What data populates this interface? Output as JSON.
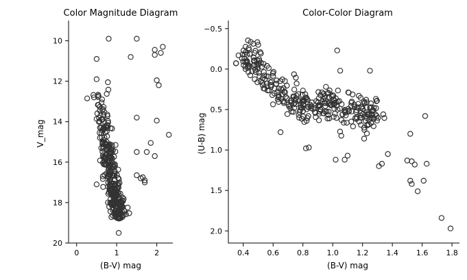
{
  "chart_data": [
    {
      "type": "scatter",
      "title": "Color Magnitude Diagram",
      "xlabel": "(B-V) mag",
      "ylabel": "V_mag",
      "xlim": [
        -0.2,
        2.4
      ],
      "ylim": [
        20,
        9
      ],
      "y_inverted": true,
      "xticks": [
        0,
        1,
        2
      ],
      "yticks": [
        10,
        12,
        14,
        16,
        18,
        20
      ],
      "marker": "open-circle",
      "marker_color": "#333333",
      "outliers": [
        [
          0.8,
          9.9
        ],
        [
          1.5,
          9.9
        ],
        [
          1.95,
          10.45
        ],
        [
          2.15,
          10.3
        ],
        [
          1.95,
          10.7
        ],
        [
          2.1,
          10.6
        ],
        [
          1.35,
          10.8
        ],
        [
          0.5,
          10.9
        ],
        [
          0.5,
          11.9
        ],
        [
          2.0,
          11.95
        ],
        [
          2.05,
          12.2
        ],
        [
          0.78,
          12.05
        ],
        [
          1.5,
          13.8
        ],
        [
          2.0,
          13.95
        ],
        [
          2.3,
          14.65
        ],
        [
          1.85,
          15.05
        ],
        [
          1.5,
          15.5
        ],
        [
          1.75,
          15.5
        ],
        [
          1.95,
          15.7
        ],
        [
          1.5,
          16.65
        ],
        [
          1.6,
          16.8
        ],
        [
          1.65,
          16.75
        ],
        [
          1.7,
          16.9
        ],
        [
          1.7,
          17.0
        ],
        [
          0.5,
          17.1
        ],
        [
          1.05,
          19.5
        ]
      ],
      "cluster": {
        "x_at_v12": 0.52,
        "x_at_v15": 0.72,
        "x_at_v17": 0.9,
        "x_at_v18.5": 1.05,
        "v_range": [
          12.3,
          18.8
        ],
        "approx_points": 340
      }
    },
    {
      "type": "scatter",
      "title": "Color-Color Diagram",
      "xlabel": "(B-V) mag",
      "ylabel": "(U-B) mag",
      "xlim": [
        0.3,
        1.85
      ],
      "ylim": [
        2.15,
        -0.6
      ],
      "y_inverted": true,
      "xticks": [
        0.4,
        0.6,
        0.8,
        1.0,
        1.2,
        1.4,
        1.6,
        1.8
      ],
      "yticks": [
        -0.5,
        0.0,
        0.5,
        1.0,
        1.5,
        2.0
      ],
      "marker": "open-circle",
      "marker_color": "#333333",
      "outliers": [
        [
          0.5,
          -0.3
        ],
        [
          1.03,
          -0.23
        ],
        [
          1.05,
          0.02
        ],
        [
          1.25,
          0.02
        ],
        [
          1.62,
          0.58
        ],
        [
          1.52,
          0.8
        ],
        [
          1.5,
          1.13
        ],
        [
          1.53,
          1.14
        ],
        [
          1.55,
          1.18
        ],
        [
          1.63,
          1.17
        ],
        [
          1.37,
          1.05
        ],
        [
          1.33,
          1.17
        ],
        [
          1.31,
          1.2
        ],
        [
          1.52,
          1.38
        ],
        [
          1.53,
          1.42
        ],
        [
          1.57,
          1.51
        ],
        [
          1.61,
          1.38
        ],
        [
          1.73,
          1.84
        ],
        [
          1.79,
          1.97
        ],
        [
          0.65,
          0.78
        ],
        [
          0.82,
          0.98
        ],
        [
          0.84,
          0.97
        ],
        [
          1.02,
          1.12
        ],
        [
          1.08,
          1.12
        ],
        [
          1.1,
          1.07
        ]
      ],
      "cluster": {
        "trend": [
          [
            0.4,
            -0.2
          ],
          [
            0.5,
            0.0
          ],
          [
            0.6,
            0.2
          ],
          [
            0.7,
            0.4
          ],
          [
            0.85,
            0.45
          ],
          [
            1.0,
            0.48
          ],
          [
            1.15,
            0.52
          ],
          [
            1.3,
            0.58
          ]
        ],
        "approx_points": 340
      }
    }
  ]
}
